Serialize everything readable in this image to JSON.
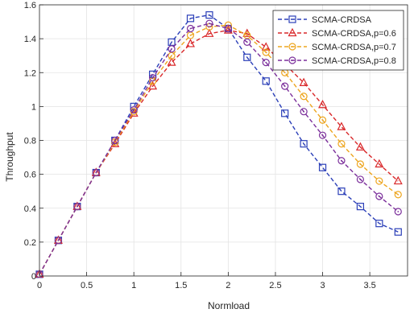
{
  "chart_data": {
    "type": "line",
    "title": "",
    "xlabel": "Normload",
    "ylabel": "Throughput",
    "xlim": [
      0,
      3.9
    ],
    "ylim": [
      0,
      1.6
    ],
    "xticks": [
      0,
      0.5,
      1,
      1.5,
      2,
      2.5,
      3,
      3.5
    ],
    "xtick_labels": [
      "0",
      "0.5",
      "1",
      "1.5",
      "2",
      "2.5",
      "3",
      "3.5"
    ],
    "yticks": [
      0,
      0.2,
      0.4,
      0.6,
      0.8,
      1,
      1.2,
      1.4,
      1.6
    ],
    "ytick_labels": [
      "0",
      "0.2",
      "0.4",
      "0.6",
      "0.8",
      "1",
      "1.2",
      "1.4",
      "1.6"
    ],
    "grid": true,
    "legend_position": "top-right",
    "x": [
      0,
      0.2,
      0.4,
      0.6,
      0.8,
      1.0,
      1.2,
      1.4,
      1.6,
      1.8,
      2.0,
      2.2,
      2.4,
      2.6,
      2.8,
      3.0,
      3.2,
      3.4,
      3.6,
      3.8
    ],
    "series": [
      {
        "name": "SCMA-CRDSA",
        "color": "#2b3fb8",
        "marker": "square",
        "values": [
          0.01,
          0.21,
          0.41,
          0.61,
          0.8,
          1.0,
          1.19,
          1.38,
          1.52,
          1.54,
          1.46,
          1.29,
          1.15,
          0.96,
          0.78,
          0.64,
          0.5,
          0.41,
          0.31,
          0.26
        ]
      },
      {
        "name": "SCMA-CRDSA,p=0.6",
        "color": "#d9282a",
        "marker": "triangle",
        "values": [
          0.01,
          0.21,
          0.41,
          0.61,
          0.78,
          0.96,
          1.12,
          1.26,
          1.37,
          1.43,
          1.45,
          1.43,
          1.35,
          1.25,
          1.14,
          1.01,
          0.88,
          0.76,
          0.66,
          0.56
        ]
      },
      {
        "name": "SCMA-CRDSA,p=0.7",
        "color": "#eda51e",
        "marker": "circle",
        "values": [
          0.01,
          0.21,
          0.41,
          0.61,
          0.79,
          0.97,
          1.15,
          1.3,
          1.42,
          1.47,
          1.48,
          1.42,
          1.32,
          1.2,
          1.06,
          0.92,
          0.78,
          0.66,
          0.56,
          0.48
        ]
      },
      {
        "name": "SCMA-CRDSA,p=0.8",
        "color": "#7b2f9b",
        "marker": "circle",
        "values": [
          0.01,
          0.21,
          0.41,
          0.61,
          0.8,
          0.98,
          1.17,
          1.34,
          1.46,
          1.49,
          1.46,
          1.38,
          1.26,
          1.12,
          0.97,
          0.83,
          0.68,
          0.57,
          0.47,
          0.38
        ]
      }
    ]
  }
}
